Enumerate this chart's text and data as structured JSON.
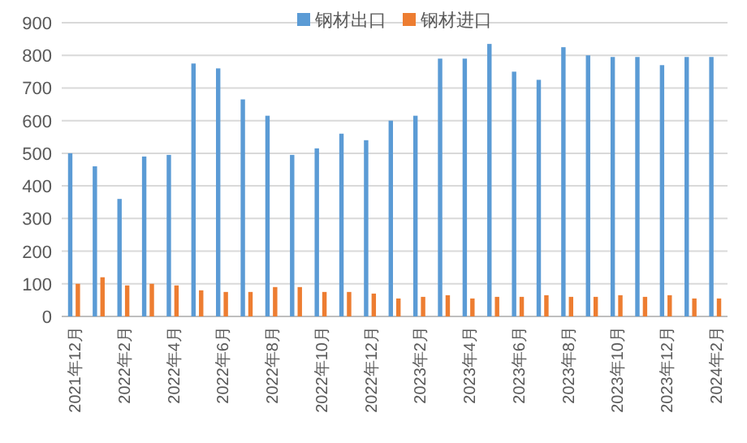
{
  "chart_data": {
    "type": "bar",
    "categories": [
      "2021年12月",
      null,
      "2022年2月",
      null,
      "2022年4月",
      null,
      "2022年6月",
      null,
      "2022年8月",
      null,
      "2022年10月",
      null,
      "2022年12月",
      null,
      "2023年2月",
      null,
      "2023年4月",
      null,
      "2023年6月",
      null,
      "2023年8月",
      null,
      "2023年10月",
      null,
      "2023年12月",
      null,
      "2024年2月"
    ],
    "series": [
      {
        "name": "钢材出口",
        "color": "#5b9bd5",
        "values": [
          500,
          460,
          360,
          490,
          495,
          775,
          760,
          665,
          615,
          495,
          515,
          560,
          540,
          600,
          615,
          790,
          790,
          835,
          750,
          725,
          825,
          800,
          795,
          795,
          770,
          795,
          795
        ]
      },
      {
        "name": "钢材进口",
        "color": "#ed7d31",
        "values": [
          100,
          120,
          95,
          100,
          95,
          80,
          75,
          75,
          90,
          90,
          75,
          75,
          70,
          55,
          60,
          65,
          55,
          60,
          60,
          65,
          60,
          60,
          65,
          60,
          65,
          55,
          55
        ]
      }
    ],
    "ylim": [
      0,
      900
    ],
    "yticks": [
      0,
      100,
      200,
      300,
      400,
      500,
      600,
      700,
      800,
      900
    ],
    "grid": "y",
    "legend": "top"
  }
}
